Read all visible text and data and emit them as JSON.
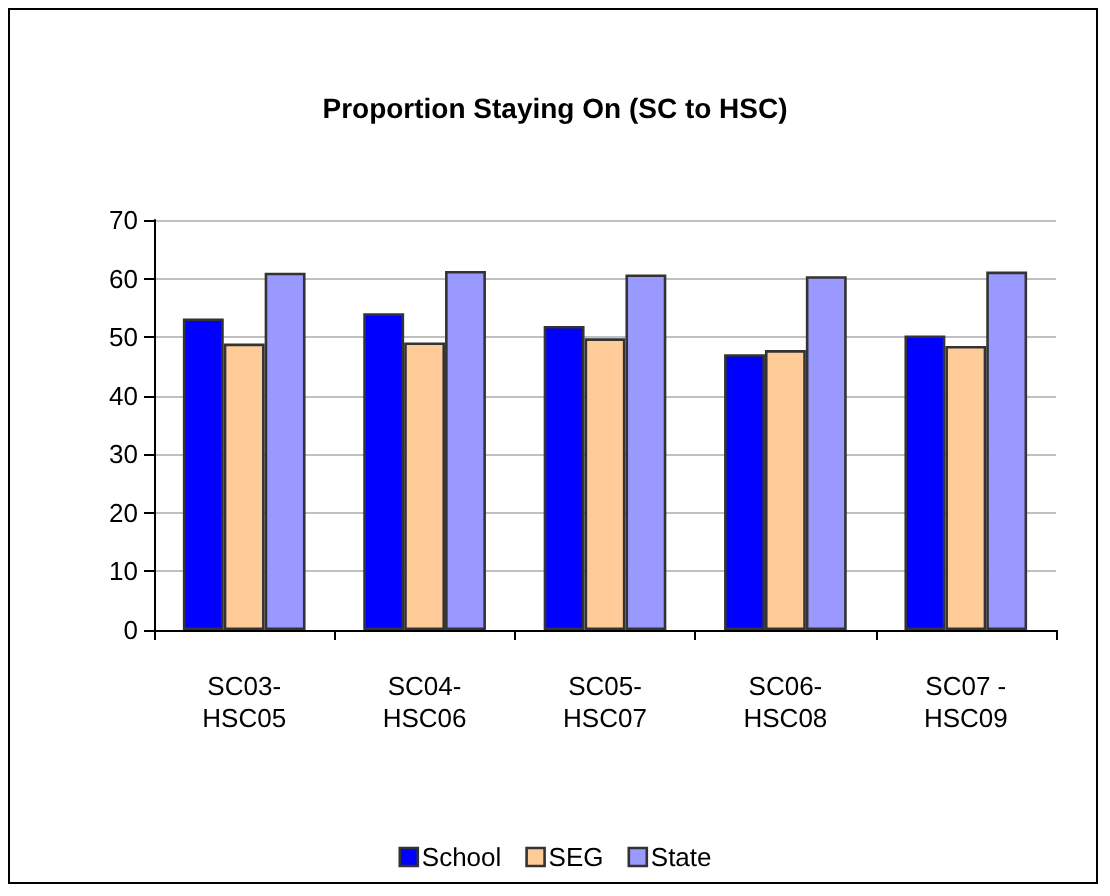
{
  "chart_data": {
    "type": "bar",
    "title": "Proportion Staying On (SC to HSC)",
    "categories": [
      "SC03-HSC05",
      "SC04-HSC06",
      "SC05-HSC07",
      "SC06-HSC08",
      "SC07 - HSC09"
    ],
    "series": [
      {
        "name": "School",
        "color": "#0000ff",
        "values": [
          53.2,
          54.1,
          51.9,
          47.1,
          50.3
        ]
      },
      {
        "name": "SEG",
        "color": "#ffcc99",
        "values": [
          48.9,
          49.1,
          49.8,
          47.8,
          48.5
        ]
      },
      {
        "name": "State",
        "color": "#9999ff",
        "values": [
          61.0,
          61.3,
          60.7,
          60.4,
          61.2
        ]
      }
    ],
    "ylim": [
      0,
      70
    ],
    "yticks": [
      0,
      10,
      20,
      30,
      40,
      50,
      60,
      70
    ],
    "grid": "y",
    "legend": "bottom"
  }
}
